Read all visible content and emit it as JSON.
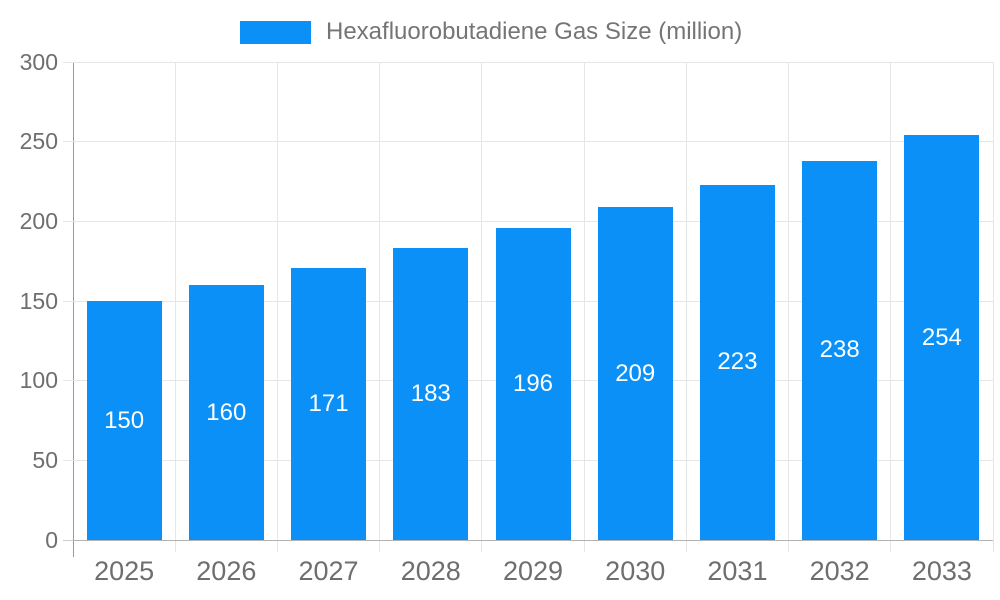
{
  "chart_data": {
    "type": "bar",
    "title": "Hexafluorobutadiene Gas Size (million)",
    "legend": {
      "label": "Hexafluorobutadiene Gas Size (million)",
      "position": "top-center"
    },
    "categories": [
      "2025",
      "2026",
      "2027",
      "2028",
      "2029",
      "2030",
      "2031",
      "2032",
      "2033"
    ],
    "series": [
      {
        "name": "Hexafluorobutadiene Gas Size (million)",
        "values": [
          150,
          160,
          171,
          183,
          196,
          209,
          223,
          238,
          254
        ]
      }
    ],
    "value_labels_shown": true,
    "xlabel": "",
    "ylabel": "",
    "ylim": [
      0,
      300
    ],
    "ytick_step": 50,
    "yticks": [
      0,
      50,
      100,
      150,
      200,
      250,
      300
    ],
    "grid": "on",
    "colors": {
      "bar": "#0A90F6",
      "grid": "#E6E6E6",
      "y_axis_line": "#999999",
      "x_axis_line": "#B3B3B3",
      "y_tick": "#CCCCCC",
      "x_tick": "#E6E6E6",
      "axis_label_text": "#6E6E6E",
      "legend_text": "#757575",
      "value_label_text": "#FFFFFF",
      "background": "#FFFFFF"
    }
  }
}
